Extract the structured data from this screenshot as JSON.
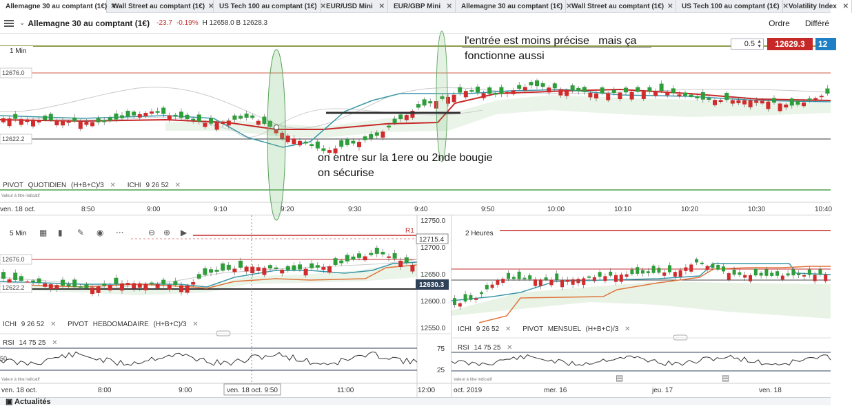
{
  "tabs": [
    {
      "label": "Allemagne 30 au comptant (1€)",
      "active": true
    },
    {
      "label": "Wall Street au comptant (1€)"
    },
    {
      "label": "US Tech 100 au comptant (1€)"
    },
    {
      "label": "EUR/USD Mini"
    },
    {
      "label": "EUR/GBP Mini"
    },
    {
      "label": "Allemagne 30 au comptant (1€)"
    },
    {
      "label": "Wall Street au comptant (1€)"
    },
    {
      "label": "US Tech 100 au comptant (1€)"
    },
    {
      "label": "Volatility Index"
    }
  ],
  "header": {
    "instrument": "Allemagne 30 au comptant (1€)",
    "change": "-23.7",
    "change_pct": "-0.19%",
    "high_low": "H 12658.0  B 12628.3",
    "ordre": "Ordre",
    "differe": "Différé"
  },
  "trade": {
    "qty": "0.5",
    "sell_price": "12629.3",
    "buy_price": "12"
  },
  "annotations": {
    "top_right": "l'entrée est moins précise   mais ça\nfonctionne aussi",
    "bottom": "on entre sur la 1ere ou 2nde bougie\non sécurise"
  },
  "chart1": {
    "timeframe": "1 Min",
    "level_upper": "12676.0",
    "level_lower": "12622.2",
    "indicators": [
      {
        "name": "PIVOT",
        "label": "QUOTIDIEN",
        "params": "(H+B+C)/3"
      },
      {
        "name": "ICHI",
        "label": "9  26  52",
        "params": ""
      }
    ],
    "disclaimer": "Valeur à titre indicatif",
    "x_labels": [
      "ven. 18 oct.",
      "8:50",
      "9:00",
      "9:10",
      "9:20",
      "9:30",
      "9:40",
      "9:50",
      "10:00",
      "10:10",
      "10:20",
      "10:30",
      "10:40"
    ]
  },
  "chart2": {
    "timeframe": "5 Min",
    "toolbar_icons": [
      "calculator-icon",
      "bar-chart-icon",
      "pencil-icon",
      "eye-icon",
      "more-icon",
      "zoom-out-icon",
      "zoom-in-icon",
      "play-icon"
    ],
    "pivot_label": "R1",
    "level_upper": "12676.0",
    "level_lower": "12622.2",
    "price_axis": [
      "12750.0",
      "12715.4",
      "12700.0",
      "12650.0",
      "12630.3",
      "12600.0",
      "12550.0"
    ],
    "indicators": [
      {
        "name": "ICHI",
        "label": "9  26  52"
      },
      {
        "name": "PIVOT",
        "label": "HEBDOMADAIRE",
        "params": "(H+B+C)/3"
      }
    ],
    "rsi": {
      "label": "RSI",
      "params": "14  75  25",
      "levels": [
        "75",
        "50",
        "25"
      ]
    },
    "disclaimer": "Valeur à titre indicatif",
    "x_labels": [
      "ven. 18 oct.",
      "8:00",
      "9:00",
      "ven. 18 oct. 9:50",
      "11:00",
      "12:00"
    ]
  },
  "chart3": {
    "timeframe": "2 Heures",
    "indicators": [
      {
        "name": "ICHI",
        "label": "9  26  52"
      },
      {
        "name": "PIVOT",
        "label": "MENSUEL",
        "params": "(H+B+C)/3"
      }
    ],
    "rsi": {
      "label": "RSI",
      "params": "14  75  25"
    },
    "disclaimer": "Valeur à titre indicatif",
    "x_labels": [
      "oct. 2019",
      "mer. 16",
      "jeu. 17",
      "ven. 18"
    ]
  },
  "footer": {
    "label": "Actualités"
  },
  "colors": {
    "up": "#2e9e3a",
    "down": "#d22b2b",
    "kijun": "#c62828",
    "tenkan": "#3b97a8",
    "pivot": "#c62828",
    "rsi_line": "#333333"
  }
}
